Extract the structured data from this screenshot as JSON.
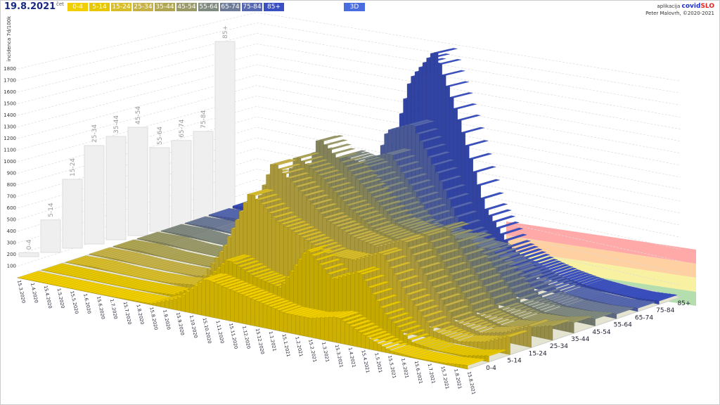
{
  "header": {
    "date": "19.8.2021",
    "date_suffix": "čet",
    "mode_button": "3D"
  },
  "legend": [
    {
      "label": "0-4",
      "color": "#f2cf00"
    },
    {
      "label": "5-14",
      "color": "#e6c700"
    },
    {
      "label": "15-24",
      "color": "#d8bd2a"
    },
    {
      "label": "25-34",
      "color": "#c6b246"
    },
    {
      "label": "35-44",
      "color": "#afa552"
    },
    {
      "label": "45-54",
      "color": "#9a9968"
    },
    {
      "label": "55-64",
      "color": "#818a80"
    },
    {
      "label": "65-74",
      "color": "#6d7b98"
    },
    {
      "label": "75-84",
      "color": "#5668b0"
    },
    {
      "label": "85+",
      "color": "#3a4fc0"
    }
  ],
  "credit": {
    "prefix": "aplikacija",
    "brand_a": "covid",
    "brand_b": "SLO",
    "author": "Peter Malovrh, ©2020-2021"
  },
  "chart_data": {
    "type": "bar3d",
    "ylabel": "incidenca 7d/100k",
    "yticks": [
      100,
      200,
      300,
      400,
      500,
      600,
      700,
      800,
      900,
      1000,
      1100,
      1200,
      1300,
      1400,
      1500,
      1600,
      1700,
      1800
    ],
    "ylim": [
      0,
      1800
    ],
    "age_groups": [
      "0-4",
      "5-14",
      "15-24",
      "25-34",
      "35-44",
      "45-54",
      "55-64",
      "65-74",
      "75-84",
      "85+"
    ],
    "date_labels": [
      "15.3.2020",
      "1.4.2020",
      "15.4.2020",
      "1.5.2020",
      "15.5.2020",
      "1.6.2020",
      "15.6.2020",
      "1.7.2020",
      "15.7.2020",
      "1.8.2020",
      "15.8.2020",
      "1.9.2020",
      "15.9.2020",
      "1.10.2020",
      "15.10.2020",
      "1.11.2020",
      "15.11.2020",
      "1.12.2020",
      "15.12.2020",
      "1.1.2021",
      "15.1.2021",
      "1.2.2021",
      "15.2.2021",
      "1.3.2021",
      "15.3.2021",
      "1.4.2021",
      "15.4.2021",
      "1.5.2021",
      "15.5.2021",
      "1.6.2021",
      "15.6.2021",
      "1.7.2021",
      "15.7.2021",
      "1.8.2021",
      "15.8.2021"
    ],
    "months": [
      "3.2020",
      "4.2020",
      "5.2020",
      "6.2020",
      "7.2020",
      "8.2020",
      "9.2020",
      "10.2020",
      "11.2020",
      "12.2020",
      "1.2021",
      "2.2021",
      "3.2021",
      "4.2021",
      "5.2021",
      "6.2021",
      "7.2021",
      "8.2021"
    ],
    "series": [
      {
        "name": "0-4",
        "values": [
          0,
          0,
          0,
          0,
          5,
          10,
          100,
          300,
          250,
          200,
          150,
          150,
          200,
          100,
          20,
          5,
          10,
          30
        ]
      },
      {
        "name": "5-14",
        "values": [
          0,
          0,
          0,
          0,
          5,
          20,
          150,
          400,
          300,
          250,
          600,
          400,
          500,
          200,
          30,
          5,
          10,
          50
        ]
      },
      {
        "name": "15-24",
        "values": [
          0,
          10,
          0,
          0,
          10,
          40,
          400,
          900,
          700,
          600,
          500,
          500,
          600,
          300,
          60,
          20,
          60,
          150
        ]
      },
      {
        "name": "25-34",
        "values": [
          5,
          10,
          0,
          0,
          10,
          40,
          500,
          1100,
          900,
          700,
          600,
          550,
          650,
          350,
          80,
          30,
          80,
          180
        ]
      },
      {
        "name": "35-44",
        "values": [
          5,
          15,
          0,
          0,
          10,
          40,
          500,
          1100,
          950,
          750,
          600,
          550,
          650,
          350,
          80,
          30,
          60,
          120
        ]
      },
      {
        "name": "45-54",
        "values": [
          5,
          15,
          0,
          0,
          10,
          40,
          500,
          1200,
          1000,
          800,
          600,
          550,
          650,
          350,
          70,
          25,
          40,
          90
        ]
      },
      {
        "name": "55-64",
        "values": [
          5,
          15,
          0,
          0,
          10,
          30,
          400,
          1000,
          950,
          700,
          500,
          450,
          500,
          300,
          60,
          20,
          30,
          60
        ]
      },
      {
        "name": "65-74",
        "values": [
          5,
          20,
          0,
          0,
          5,
          20,
          350,
          900,
          1000,
          700,
          400,
          350,
          350,
          200,
          40,
          15,
          20,
          40
        ]
      },
      {
        "name": "75-84",
        "values": [
          10,
          30,
          0,
          0,
          5,
          20,
          400,
          1100,
          1200,
          800,
          350,
          200,
          150,
          80,
          20,
          10,
          10,
          30
        ]
      },
      {
        "name": "85+",
        "values": [
          20,
          60,
          10,
          0,
          5,
          30,
          600,
          1500,
          1800,
          1200,
          500,
          200,
          100,
          50,
          20,
          10,
          10,
          30
        ]
      }
    ],
    "wall_bars": {
      "labels": [
        "0-4",
        "5-14",
        "15-24",
        "25-34",
        "35-44",
        "45-54",
        "55-64",
        "65-74",
        "75-84",
        "85+"
      ],
      "values": [
        40,
        330,
        700,
        1000,
        1050,
        1100,
        850,
        880,
        930,
        1800
      ]
    },
    "threshold_bands": [
      "#ff9a9a",
      "#ffc890",
      "#f6ee90",
      "#a8d8a0"
    ]
  }
}
